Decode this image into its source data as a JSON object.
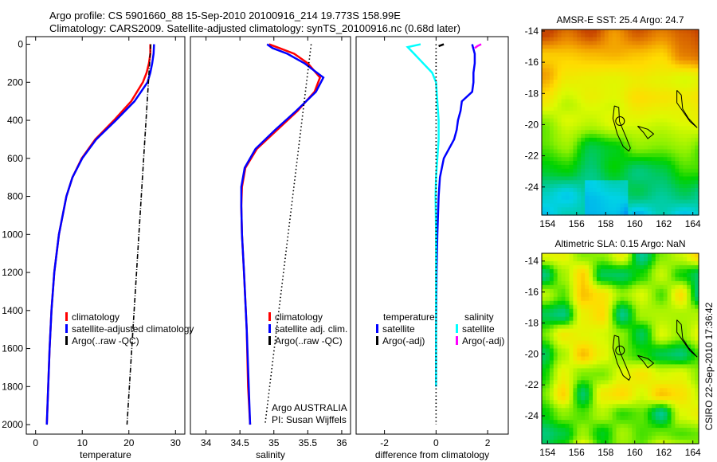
{
  "title": {
    "line1": "Argo profile: CS 5901660_88 15-Sep-2010 20100916_214 19.773S 158.99E",
    "line2": "Climatology: CARS2009. Satellite-adjusted climatology: synTS_20100916.nc (0.68d later)"
  },
  "footer_stamp": "CSIRO 22-Sep-2010 17:36:42",
  "colors": {
    "climatology": "#ff0000",
    "satellite": "#0000ff",
    "argo": "#000000",
    "sal_satellite": "#00ffff",
    "sal_argo": "#ff00ff"
  },
  "chart_data": [
    {
      "type": "line",
      "id": "temperature",
      "xlabel": "temperature",
      "xlim": [
        -2,
        32
      ],
      "ylim": [
        2050,
        -40
      ],
      "xticks": [
        "0",
        "10",
        "20",
        "30"
      ],
      "xtick_values": [
        0,
        10,
        20,
        30
      ],
      "yticks": [
        "0",
        "200",
        "400",
        "600",
        "800",
        "1000",
        "1200",
        "1400",
        "1600",
        "1800",
        "2000"
      ],
      "ytick_values": [
        0,
        200,
        400,
        600,
        800,
        1000,
        1200,
        1400,
        1600,
        1800,
        2000
      ],
      "legend": [
        "climatology",
        "satellite-adjusted climatology",
        "Argo(..raw -QC)"
      ],
      "series": [
        {
          "name": "climatology",
          "color": "#ff0000",
          "style": "solid",
          "depth": [
            0,
            50,
            100,
            150,
            200,
            300,
            400,
            500,
            600,
            700,
            800,
            1000,
            1200,
            1400,
            1600,
            1800,
            2000
          ],
          "values": [
            24.6,
            24.6,
            24.3,
            23.8,
            23,
            20.5,
            16.8,
            12.8,
            9.9,
            7.9,
            6.6,
            5,
            4,
            3.4,
            3,
            2.7,
            2.4
          ]
        },
        {
          "name": "satellite-adjusted climatology",
          "color": "#0000ff",
          "style": "solid",
          "depth": [
            0,
            50,
            100,
            150,
            200,
            300,
            400,
            500,
            600,
            700,
            800,
            1000,
            1200,
            1400,
            1600,
            1800,
            2000
          ],
          "values": [
            25.4,
            25.3,
            25,
            24.6,
            24,
            21.2,
            17.2,
            13,
            10,
            7.9,
            6.6,
            5,
            4,
            3.4,
            3,
            2.7,
            2.4
          ]
        },
        {
          "name": "Argo(..raw -QC)",
          "color": "#000000",
          "style": "dashdot",
          "depth": [
            0,
            2000
          ],
          "values": [
            24.7,
            19.6
          ]
        }
      ]
    },
    {
      "type": "line",
      "id": "salinity",
      "xlabel": "salinity",
      "xlim": [
        33.77,
        36.13
      ],
      "ylim": [
        2050,
        -40
      ],
      "xticks": [
        "34",
        "34.5",
        "35",
        "35.5",
        "36"
      ],
      "xtick_values": [
        34,
        34.5,
        35,
        35.5,
        36
      ],
      "legend": [
        "climatology",
        "satellite adj. clim.",
        "Argo(..raw -QC)"
      ],
      "annotation": [
        "Argo AUSTRALIA",
        "PI: Susan Wijffels"
      ],
      "series": [
        {
          "name": "climatology",
          "color": "#ff0000",
          "style": "solid",
          "depth": [
            0,
            20,
            50,
            100,
            175,
            250,
            350,
            450,
            550,
            650,
            750,
            850,
            1000,
            1200,
            1500,
            1800,
            2000
          ],
          "values": [
            34.93,
            35.08,
            35.3,
            35.5,
            35.68,
            35.6,
            35.35,
            35.05,
            34.75,
            34.58,
            34.53,
            34.52,
            34.53,
            34.56,
            34.6,
            34.62,
            34.65
          ]
        },
        {
          "name": "satellite adj. clim.",
          "color": "#0000ff",
          "style": "solid",
          "depth": [
            0,
            20,
            50,
            100,
            175,
            250,
            350,
            450,
            550,
            650,
            750,
            850,
            1000,
            1200,
            1500,
            1800,
            2000
          ],
          "values": [
            34.9,
            34.98,
            35.2,
            35.45,
            35.73,
            35.62,
            35.33,
            35.02,
            34.73,
            34.57,
            34.52,
            34.52,
            34.53,
            34.56,
            34.6,
            34.63,
            34.65
          ]
        },
        {
          "name": "Argo(..raw -QC)",
          "color": "#000000",
          "style": "dotted",
          "depth": [
            0,
            2000
          ],
          "values": [
            35.55,
            34.87
          ]
        }
      ]
    },
    {
      "type": "line",
      "id": "difference",
      "xlabel": "difference from climatology",
      "xlim": [
        -3.1,
        2.8
      ],
      "ylim": [
        2050,
        -40
      ],
      "xticks": [
        "-2",
        "0",
        "2"
      ],
      "xtick_values": [
        -2,
        0,
        2
      ],
      "legend_left": {
        "title": "temperature",
        "items": [
          "satellite",
          "Argo(-adj)"
        ]
      },
      "legend_right": {
        "title": "salinity",
        "items": [
          "satellite",
          "Argo(-adj)"
        ]
      },
      "series": [
        {
          "name": "temperature satellite",
          "color": "#0000ff",
          "style": "solid",
          "depth": [
            0,
            50,
            100,
            150,
            200,
            250,
            300,
            350,
            400,
            450,
            500,
            600,
            700,
            800,
            1000,
            1200,
            1500,
            1800
          ],
          "values": [
            1.4,
            1.5,
            1.5,
            1.45,
            1.45,
            1.4,
            1.0,
            0.95,
            0.85,
            0.8,
            0.7,
            0.3,
            0.15,
            0.1,
            0.05,
            0.02,
            0.0,
            0.0
          ]
        },
        {
          "name": "salinity satellite",
          "color": "#00ffff",
          "style": "solid",
          "depth": [
            0,
            15,
            50,
            100,
            150,
            200,
            300,
            400,
            500,
            600,
            700,
            800,
            1000,
            1200,
            1500,
            1800
          ],
          "values": [
            -0.6,
            -1.1,
            -0.85,
            -0.5,
            -0.15,
            0.0,
            0.05,
            0.1,
            0.1,
            0.05,
            0.0,
            -0.02,
            0.0,
            0.0,
            0.0,
            0.0
          ]
        },
        {
          "name": "temperature Argo(-adj)",
          "color": "#000000",
          "style": "solid",
          "depth": [
            0,
            10
          ],
          "values": [
            0.3,
            0.1
          ]
        },
        {
          "name": "salinity Argo(-adj)",
          "color": "#ff00ff",
          "style": "solid",
          "depth": [
            0,
            10,
            20
          ],
          "values": [
            1.75,
            1.6,
            1.5
          ]
        },
        {
          "name": "zero",
          "color": "#000000",
          "style": "dotted",
          "depth": [
            0,
            2000
          ],
          "values": [
            0,
            0
          ]
        }
      ]
    },
    {
      "type": "heatmap",
      "id": "sst-map",
      "title": "AMSR-E SST: 25.4 Argo: 24.7",
      "xlim": [
        153.6,
        164.4
      ],
      "ylim": [
        -25.8,
        -13.9
      ],
      "xticks": [
        "154",
        "156",
        "158",
        "160",
        "162",
        "164"
      ],
      "xtick_values": [
        154,
        156,
        158,
        160,
        162,
        164
      ],
      "yticks": [
        "-14",
        "-16",
        "-18",
        "-20",
        "-22",
        "-24"
      ],
      "ytick_values": [
        -14,
        -16,
        -18,
        -20,
        -22,
        -24
      ],
      "marker": {
        "lon": 158.99,
        "lat": -19.773
      }
    },
    {
      "type": "heatmap",
      "id": "sla-map",
      "title": "Altimetric SLA: 0.15 Argo: NaN",
      "xlim": [
        153.6,
        164.4
      ],
      "ylim": [
        -25.8,
        -13.5
      ],
      "xticks": [
        "154",
        "156",
        "158",
        "160",
        "162",
        "164"
      ],
      "xtick_values": [
        154,
        156,
        158,
        160,
        162,
        164
      ],
      "yticks": [
        "-14",
        "-16",
        "-18",
        "-20",
        "-22",
        "-24"
      ],
      "ytick_values": [
        -14,
        -16,
        -18,
        -20,
        -22,
        -24
      ],
      "marker": {
        "lon": 158.99,
        "lat": -19.773
      }
    }
  ]
}
